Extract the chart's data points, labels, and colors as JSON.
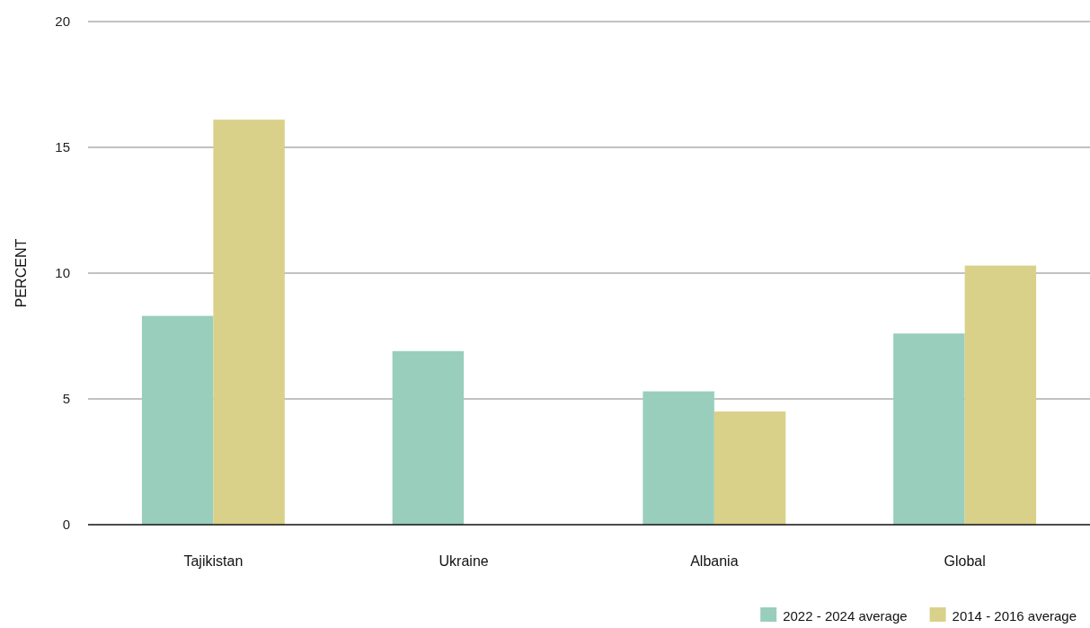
{
  "chart_data": {
    "type": "bar",
    "ylabel": "PERCENT",
    "categories": [
      "Tajikistan",
      "Ukraine",
      "Albania",
      "Global"
    ],
    "series": [
      {
        "name": "2022 - 2024 average",
        "color": "#99cebc",
        "values": [
          8.3,
          6.9,
          5.3,
          7.6
        ]
      },
      {
        "name": "2014 - 2016 average",
        "color": "#d9d189",
        "values": [
          16.1,
          null,
          4.5,
          10.3
        ]
      }
    ],
    "ylim": [
      0,
      20
    ],
    "yticks": [
      0,
      5,
      10,
      15,
      20
    ],
    "grid": "y",
    "legend": "bottom right"
  }
}
